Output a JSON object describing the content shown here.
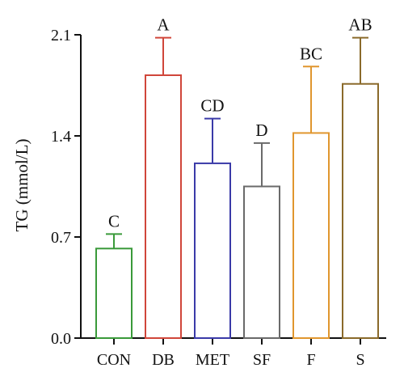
{
  "chart_data": {
    "type": "bar",
    "title": "",
    "xlabel": "",
    "ylabel": "TG (mmol/L)",
    "ylim": [
      0,
      2.1
    ],
    "yticks": [
      "0.0",
      "0.7",
      "1.4",
      "2.1"
    ],
    "grid": false,
    "legend": "none",
    "categories": [
      "CON",
      "DB",
      "MET",
      "SF",
      "F",
      "S"
    ],
    "values": [
      0.62,
      1.82,
      1.21,
      1.05,
      1.42,
      1.76
    ],
    "errors": [
      0.1,
      0.26,
      0.31,
      0.3,
      0.46,
      0.32
    ],
    "significance": [
      "C",
      "A",
      "CD",
      "D",
      "BC",
      "AB"
    ],
    "colors": [
      "#3a9a3a",
      "#d0463a",
      "#3a3aa8",
      "#6a6a6a",
      "#e0962e",
      "#8a6a2a"
    ]
  }
}
